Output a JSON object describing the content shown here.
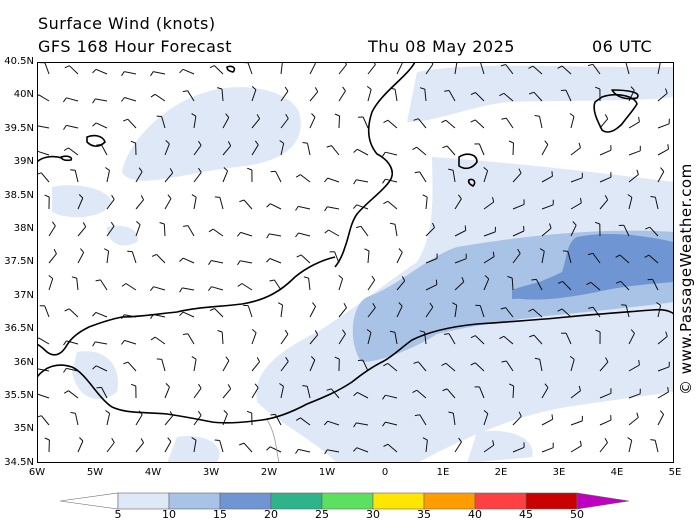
{
  "header": {
    "title": "Surface Wind (knots)",
    "model": "GFS 168 Hour Forecast",
    "date": "Thu 08 May 2025",
    "time": "06 UTC"
  },
  "credit": "© www.PassageWeather.com",
  "axes": {
    "lat_labels": [
      "40.5N",
      "40N",
      "39.5N",
      "39N",
      "38.5N",
      "38N",
      "37.5N",
      "37N",
      "36.5N",
      "36N",
      "35.5N",
      "35N",
      "34.5N"
    ],
    "lon_labels": [
      "6W",
      "5W",
      "4W",
      "3W",
      "2W",
      "1W",
      "0",
      "1E",
      "2E",
      "3E",
      "4E",
      "5E"
    ],
    "lat_range": [
      34.5,
      40.5
    ],
    "lon_range": [
      -6,
      5
    ]
  },
  "legend": {
    "labels": [
      "5",
      "10",
      "15",
      "20",
      "25",
      "30",
      "35",
      "40",
      "45",
      "50"
    ],
    "colors": [
      "#ffffff",
      "#dfe8f7",
      "#a9c3e6",
      "#6f95d3",
      "#2eb38a",
      "#5de060",
      "#ffe600",
      "#ff9d00",
      "#ff4040",
      "#c80000",
      "#c000c0"
    ]
  },
  "colors": {
    "shade_5_10": "#dfe8f7",
    "shade_10_15": "#a9c3e6",
    "shade_15_20": "#6f95d3",
    "coast": "#000000"
  }
}
